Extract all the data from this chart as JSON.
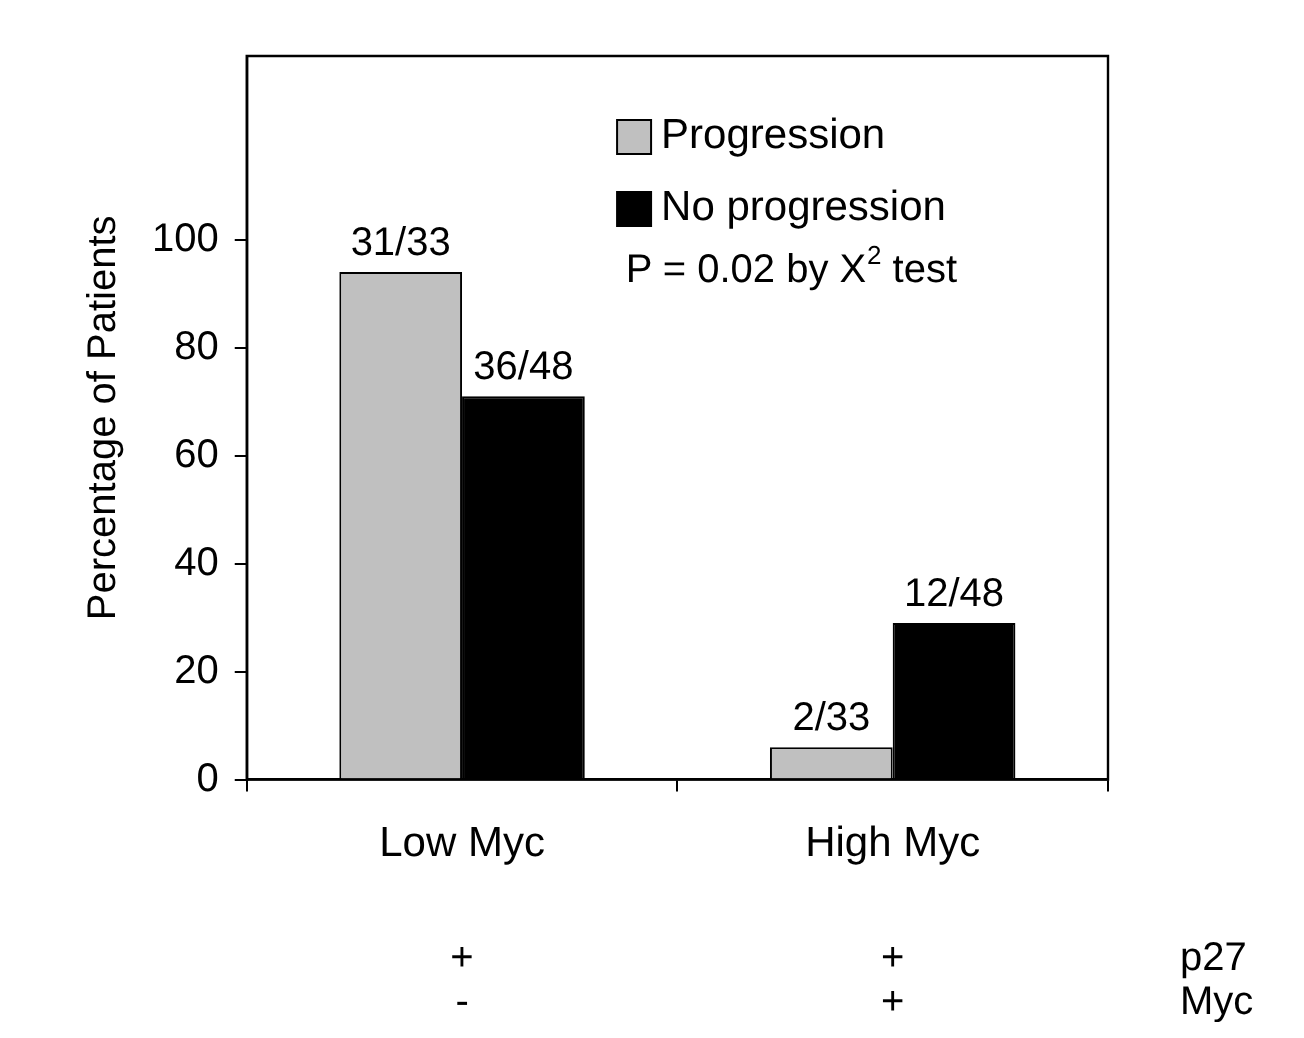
{
  "chart_data": {
    "type": "bar",
    "ylabel": "Percentage of Patients",
    "categories": [
      "Low Myc",
      "High Myc"
    ],
    "series": [
      {
        "name": "Progression",
        "color": "#c0c0c0",
        "values": [
          94,
          6
        ],
        "value_labels": [
          "31/33",
          "2/33"
        ]
      },
      {
        "name": "No progression",
        "color": "#000000",
        "values": [
          71,
          29
        ],
        "value_labels": [
          "36/48",
          "12/48"
        ]
      }
    ],
    "ylim": [
      0,
      134
    ],
    "yticks": [
      0,
      20,
      40,
      60,
      80,
      100
    ],
    "grid": false,
    "legend": "top right",
    "annotations": [
      "P = 0.02 by X$^{2}$ test",
      "+",
      "-",
      "+",
      "+",
      "p27",
      "Myc"
    ]
  }
}
